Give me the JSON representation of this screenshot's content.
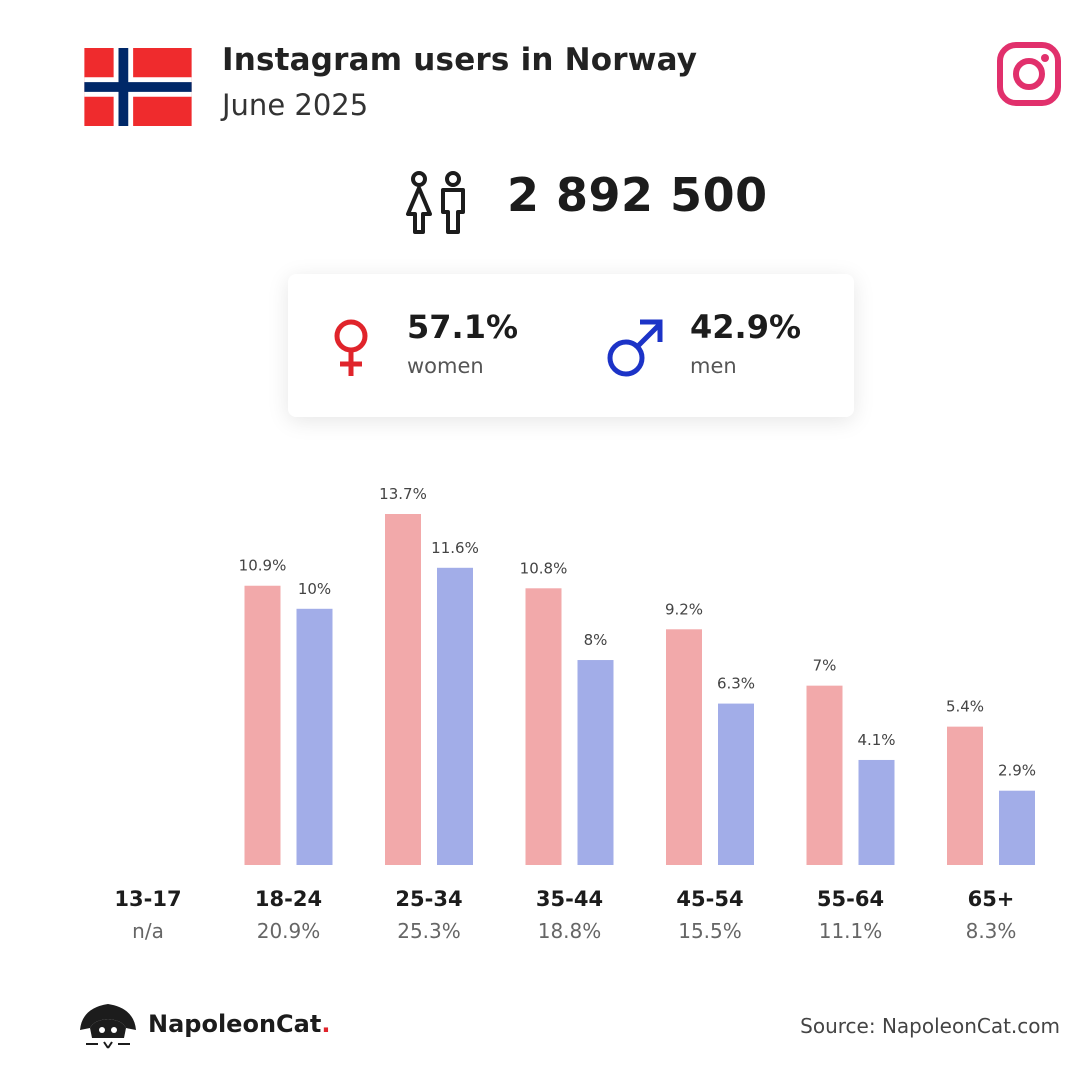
{
  "header": {
    "title": "Instagram users in Norway",
    "subtitle": "June 2025",
    "flag_icon": "norway-flag-icon",
    "platform_icon": "instagram-icon",
    "platform_color": "#e1306c"
  },
  "total": {
    "value": "2 892 500",
    "icon": "people-icon"
  },
  "gender": {
    "women": {
      "value": "57.1%",
      "label": "women",
      "icon": "female-symbol-icon",
      "color": "#e0242b"
    },
    "men": {
      "value": "42.9%",
      "label": "men",
      "icon": "male-symbol-icon",
      "color": "#1c33c7"
    }
  },
  "chart_data": {
    "type": "bar",
    "categories": [
      "13-17",
      "18-24",
      "25-34",
      "35-44",
      "45-54",
      "55-64",
      "65+"
    ],
    "category_totals": [
      "n/a",
      "20.9%",
      "25.3%",
      "18.8%",
      "15.5%",
      "11.1%",
      "8.3%"
    ],
    "series": [
      {
        "color": "#f2a9aa",
        "values": [
          null,
          10.9,
          13.7,
          10.8,
          9.2,
          7,
          5.4
        ],
        "labels": [
          "",
          "10.9%",
          "13.7%",
          "10.8%",
          "9.2%",
          "7%",
          "5.4%"
        ]
      },
      {
        "color": "#a2ade8",
        "values": [
          null,
          10,
          11.6,
          8,
          6.3,
          4.1,
          2.9
        ],
        "labels": [
          "",
          "10%",
          "11.6%",
          "8%",
          "6.3%",
          "4.1%",
          "2.9%"
        ]
      }
    ],
    "ylim": [
      0,
      13.7
    ],
    "grid": false
  },
  "footer": {
    "brand": "NapoleonCat",
    "brand_dot": ".",
    "brand_icon": "napoleoncat-logo-icon",
    "source": "Source: NapoleonCat.com"
  }
}
